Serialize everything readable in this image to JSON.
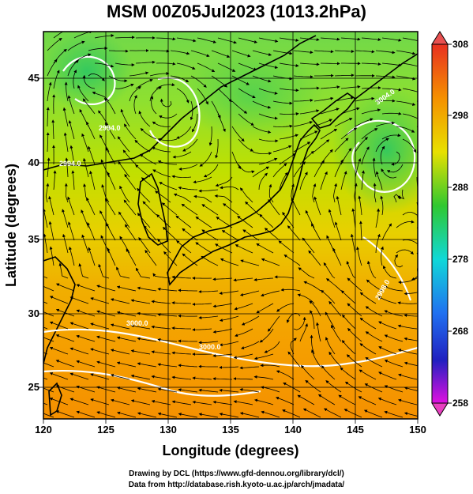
{
  "title": "MSM 00Z05Jul2023 (1013.2hPa)",
  "xaxis": {
    "label": "Longitude (degrees)",
    "ticks": [
      "120",
      "125",
      "130",
      "135",
      "140",
      "145",
      "150"
    ]
  },
  "yaxis": {
    "label": "Latitude  (degrees)",
    "ticks": [
      "25",
      "30",
      "35",
      "40",
      "45"
    ]
  },
  "colorbar": {
    "ticks": [
      "308",
      "298",
      "288",
      "278",
      "268",
      "258"
    ]
  },
  "contour_labels": [
    "3000.0",
    "3000.0",
    "3004.0",
    "2994.0",
    "2998.0",
    "2994.0"
  ],
  "footer": {
    "line1": "Drawing by DCL (https://www.gfd-dennou.org/library/dcl/)",
    "line2": "Data from http://database.rish.kyoto-u.ac.jp/arch/jmadata/"
  },
  "colors": {
    "warm": "#f5a000",
    "mid": "#a8e000",
    "cool": "#40c840",
    "land_outline": "#000000",
    "contour": "#ffffff"
  }
}
